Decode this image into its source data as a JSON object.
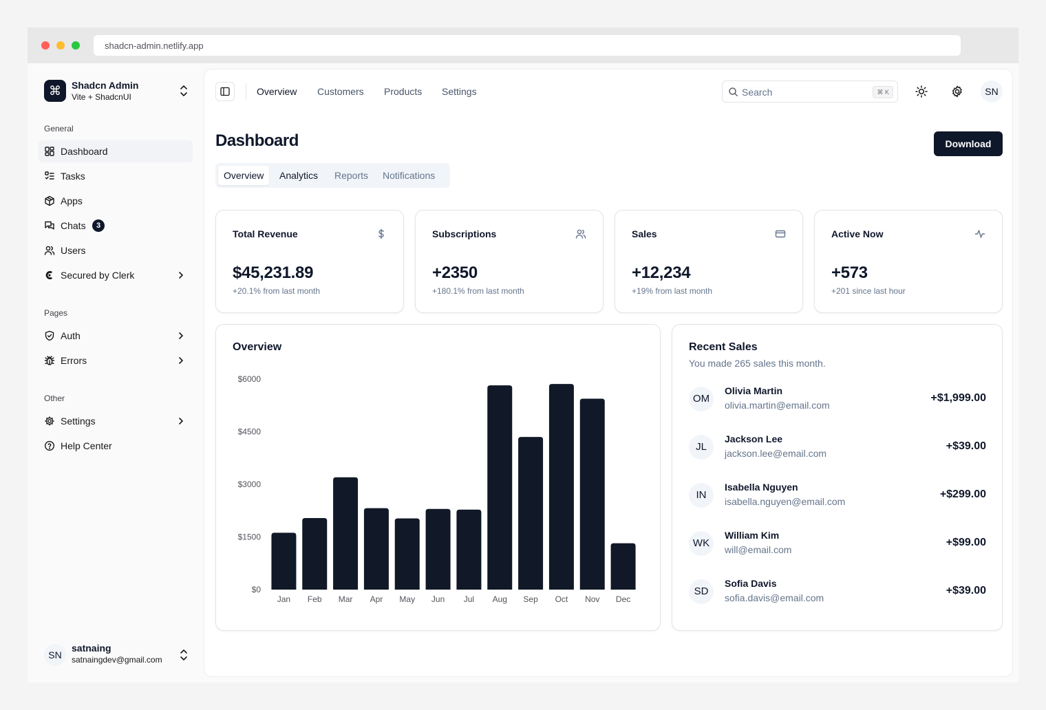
{
  "browser": {
    "url": "shadcn-admin.netlify.app"
  },
  "sidebar": {
    "brand": {
      "name": "Shadcn Admin",
      "subtitle": "Vite + ShadcnUI"
    },
    "sections": {
      "general": "General",
      "pages": "Pages",
      "other": "Other"
    },
    "general_items": [
      {
        "label": "Dashboard",
        "icon": "layout-dashboard-icon",
        "active": true
      },
      {
        "label": "Tasks",
        "icon": "list-todo-icon"
      },
      {
        "label": "Apps",
        "icon": "package-icon"
      },
      {
        "label": "Chats",
        "icon": "messages-icon",
        "badge": "3"
      },
      {
        "label": "Users",
        "icon": "users-icon"
      },
      {
        "label": "Secured by Clerk",
        "icon": "clerk-icon"
      }
    ],
    "pages_items": [
      {
        "label": "Auth",
        "icon": "shield-check-icon"
      },
      {
        "label": "Errors",
        "icon": "bug-icon"
      }
    ],
    "other_items": [
      {
        "label": "Settings",
        "icon": "settings-icon"
      },
      {
        "label": "Help Center",
        "icon": "help-circle-icon"
      }
    ],
    "user": {
      "initials": "SN",
      "name": "satnaing",
      "email": "satnaingdev@gmail.com"
    }
  },
  "topbar": {
    "links": [
      "Overview",
      "Customers",
      "Products",
      "Settings"
    ],
    "search": {
      "placeholder": "Search",
      "shortcut": "⌘ K"
    },
    "avatar": "SN"
  },
  "page": {
    "title": "Dashboard",
    "download_label": "Download",
    "tabs": [
      "Overview",
      "Analytics",
      "Reports",
      "Notifications"
    ]
  },
  "stats": [
    {
      "title": "Total Revenue",
      "value": "$45,231.89",
      "note": "+20.1% from last month",
      "icon": "dollar-icon"
    },
    {
      "title": "Subscriptions",
      "value": "+2350",
      "note": "+180.1% from last month",
      "icon": "users-icon"
    },
    {
      "title": "Sales",
      "value": "+12,234",
      "note": "+19% from last month",
      "icon": "credit-card-icon"
    },
    {
      "title": "Active Now",
      "value": "+573",
      "note": "+201 since last hour",
      "icon": "activity-icon"
    }
  ],
  "overview": {
    "title": "Overview"
  },
  "chart_data": {
    "type": "bar",
    "title": "Overview",
    "categories": [
      "Jan",
      "Feb",
      "Mar",
      "Apr",
      "May",
      "Jun",
      "Jul",
      "Aug",
      "Sep",
      "Oct",
      "Nov",
      "Dec"
    ],
    "values": [
      1620,
      2040,
      3200,
      2320,
      2030,
      2300,
      2280,
      5820,
      4350,
      5860,
      5440,
      1320
    ],
    "ylim": [
      0,
      6000
    ],
    "yticks": [
      0,
      1500,
      3000,
      4500,
      6000
    ],
    "ytick_labels": [
      "$0",
      "$1500",
      "$3000",
      "$4500",
      "$6000"
    ],
    "grid": false,
    "bar_color": "#111827"
  },
  "recent_sales": {
    "title": "Recent Sales",
    "subtitle": "You made 265 sales this month.",
    "items": [
      {
        "initials": "OM",
        "name": "Olivia Martin",
        "email": "olivia.martin@email.com",
        "amount": "+$1,999.00"
      },
      {
        "initials": "JL",
        "name": "Jackson Lee",
        "email": "jackson.lee@email.com",
        "amount": "+$39.00"
      },
      {
        "initials": "IN",
        "name": "Isabella Nguyen",
        "email": "isabella.nguyen@email.com",
        "amount": "+$299.00"
      },
      {
        "initials": "WK",
        "name": "William Kim",
        "email": "will@email.com",
        "amount": "+$99.00"
      },
      {
        "initials": "SD",
        "name": "Sofia Davis",
        "email": "sofia.davis@email.com",
        "amount": "+$39.00"
      }
    ]
  }
}
